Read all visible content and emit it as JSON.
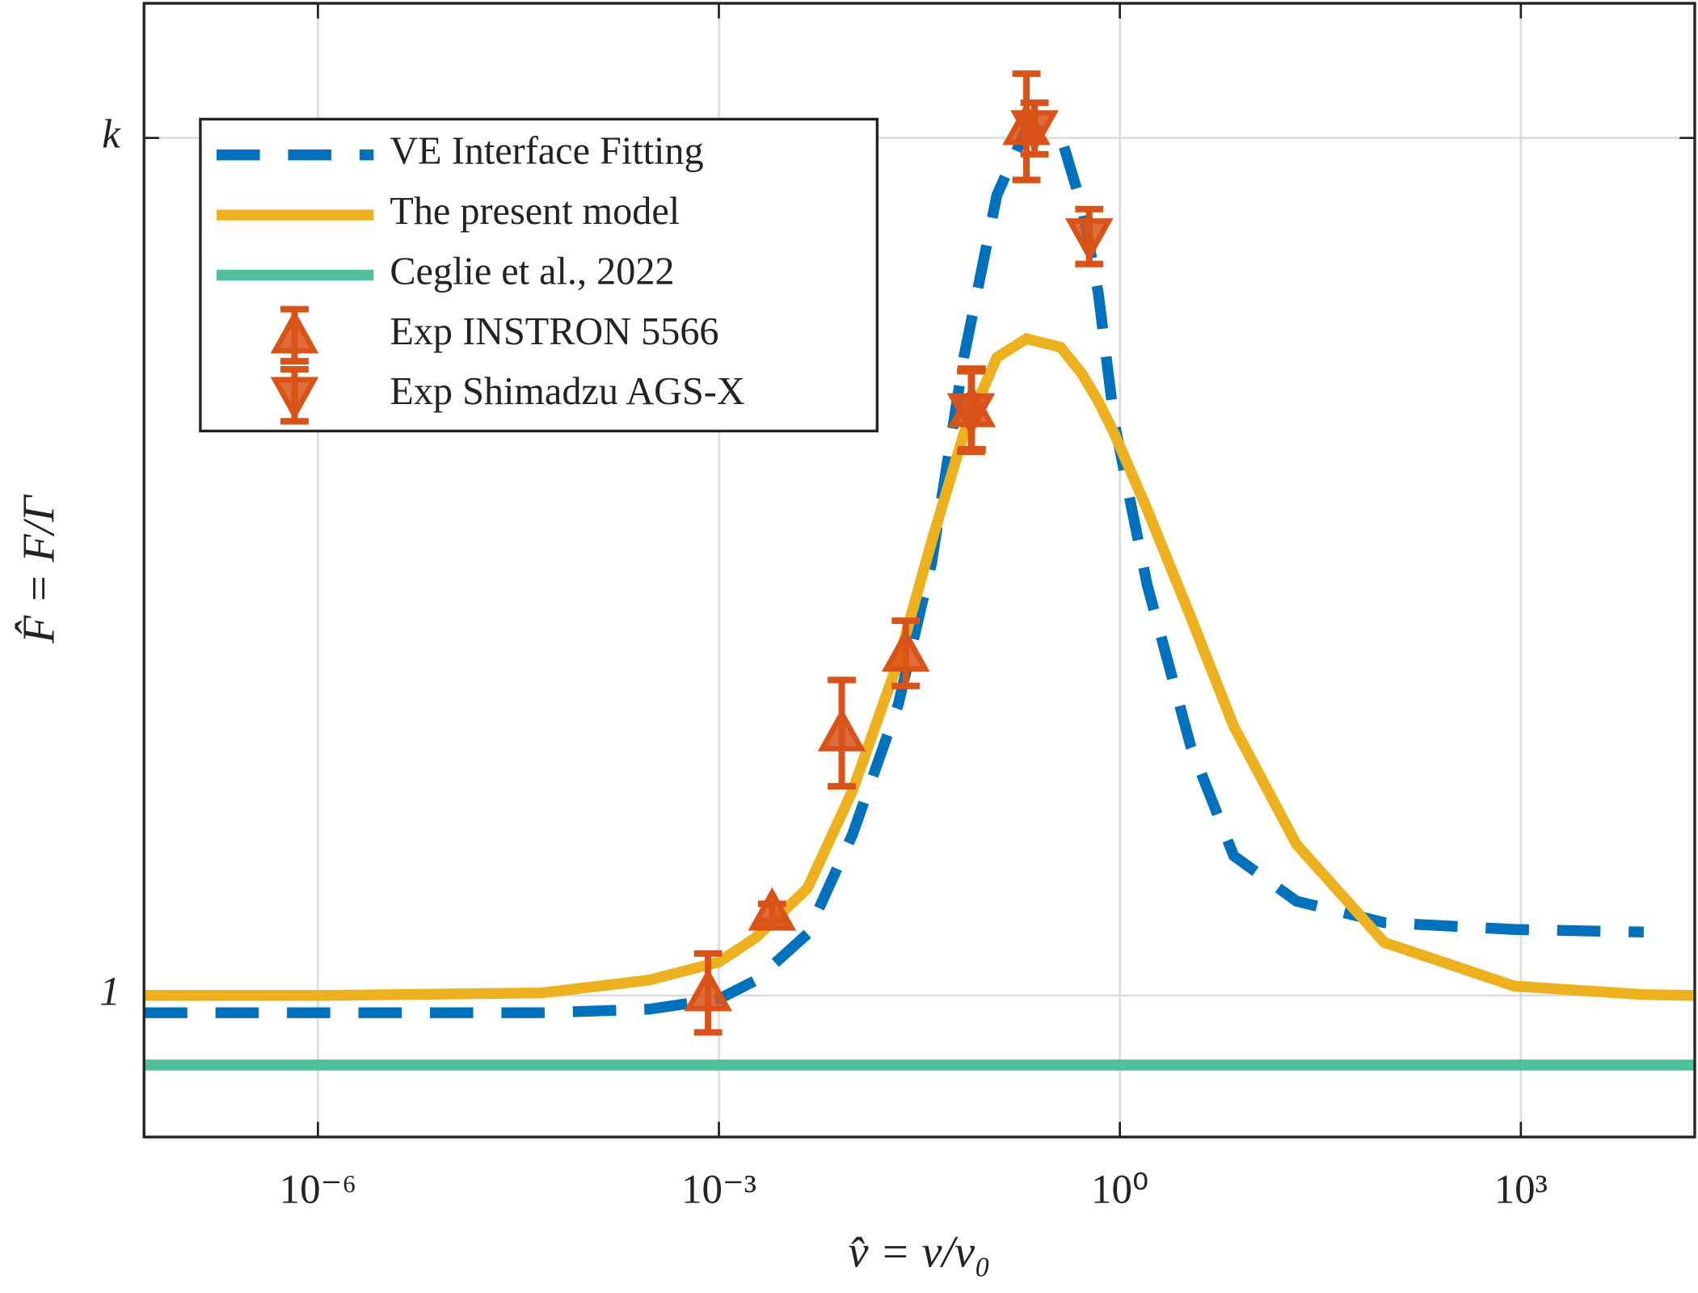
{
  "chart_data": {
    "type": "line",
    "x_label": "v̂ = v/v₀",
    "y_label": "F̂ = F/Γ",
    "x_log": true,
    "grid": true,
    "legend": "upper-left",
    "xlim": [
      5e-08,
      20000
    ],
    "ylim": [
      0.835,
      2.157
    ],
    "xticks": [
      {
        "value": 1e-06,
        "label": "10⁻⁶"
      },
      {
        "value": 0.001,
        "label": "10⁻³"
      },
      {
        "value": 1,
        "label": "10⁰"
      },
      {
        "value": 1000,
        "label": "10³"
      }
    ],
    "yticks": [
      1,
      {
        "value": 2,
        "label": "k"
      }
    ],
    "x": [
      5e-08,
      1.1e-06,
      4.7e-05,
      0.0003,
      0.001,
      0.0019,
      0.0046,
      0.01,
      0.022,
      0.039,
      0.068,
      0.12,
      0.2,
      0.36,
      0.52,
      0.69,
      0.91,
      1.6,
      3.4,
      7.1,
      21,
      95,
      890,
      8300,
      20000
    ],
    "series": [
      {
        "name": "VE Interface Fitting",
        "color": "#0072bd",
        "style": "dashed",
        "values": [
          0.98,
          0.98,
          0.98,
          0.984,
          0.996,
          1.018,
          1.072,
          1.188,
          1.34,
          1.504,
          1.744,
          1.933,
          2.011,
          2.003,
          1.92,
          1.819,
          1.668,
          1.479,
          1.29,
          1.163,
          1.11,
          1.085,
          1.077,
          1.074,
          null
        ]
      },
      {
        "name": "The present model",
        "color": "#edb120",
        "style": "solid",
        "values": [
          1.0,
          1.0,
          1.003,
          1.018,
          1.039,
          1.068,
          1.125,
          1.239,
          1.39,
          1.529,
          1.655,
          1.744,
          1.766,
          1.756,
          1.725,
          1.693,
          1.655,
          1.567,
          1.441,
          1.314,
          1.176,
          1.062,
          1.011,
          1.001,
          1.0
        ]
      },
      {
        "name": "Ceglie et al., 2022",
        "color": "#4fbf9c",
        "style": "solid",
        "values": [
          0.919,
          0.919,
          0.919,
          0.919,
          0.919,
          0.919,
          0.919,
          0.919,
          0.919,
          0.919,
          0.919,
          0.919,
          0.919,
          0.919,
          0.919,
          0.919,
          0.919,
          0.919,
          0.919,
          0.919,
          0.919,
          0.919,
          0.919,
          0.919,
          0.919
        ]
      },
      {
        "name": "Exp INSTRON 5566",
        "color": "#d95319",
        "style": "triangle-up",
        "x": [
          0.00083,
          0.0025,
          0.0083,
          0.025,
          0.078,
          0.2
        ],
        "values": [
          1.003,
          1.097,
          1.306,
          1.399,
          1.684,
          2.013
        ],
        "errors": [
          0.046,
          0.01,
          0.062,
          0.038,
          0.047,
          0.062
        ]
      },
      {
        "name": "Exp Shimadzu AGS-X",
        "color": "#d95319",
        "style": "triangle-down",
        "x": [
          0.077,
          0.23,
          0.59
        ],
        "values": [
          1.681,
          2.011,
          1.885
        ],
        "errors": [
          0.047,
          0.03,
          0.032
        ]
      }
    ]
  }
}
